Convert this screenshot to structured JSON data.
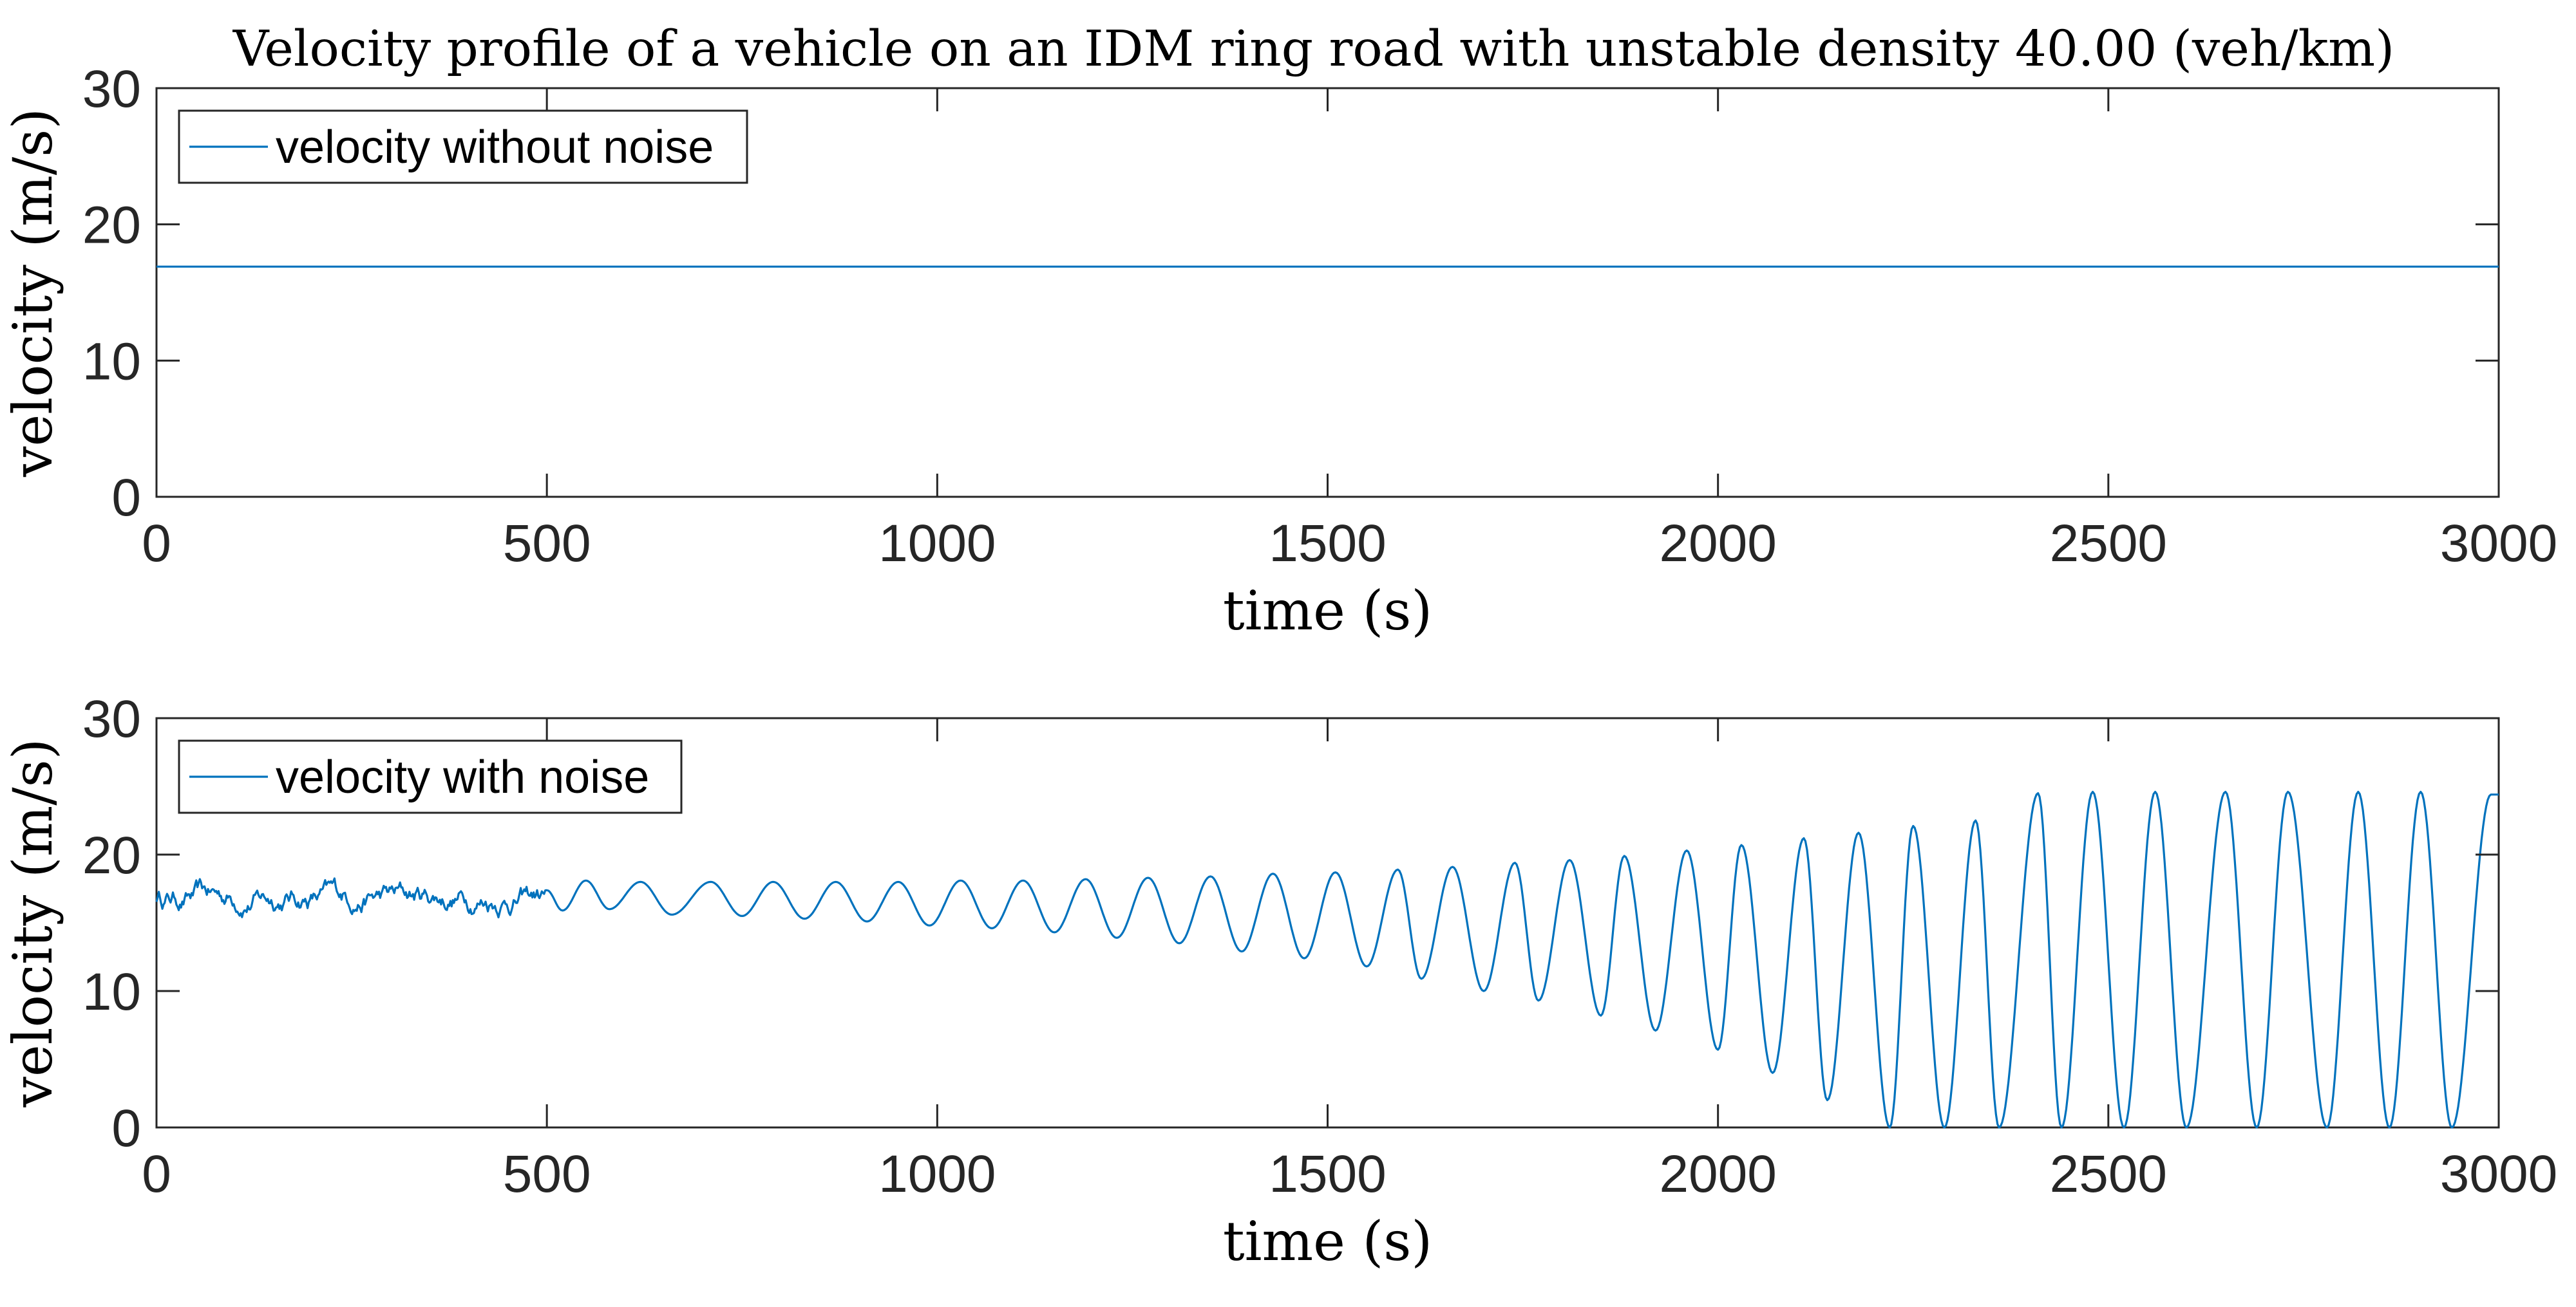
{
  "title": "Velocity profile of a vehicle on an IDM ring road with unstable density 40.00 (veh/km)",
  "colors": {
    "series": "#0072BD",
    "axes": "#262626"
  },
  "chart_data": [
    {
      "type": "line",
      "xlabel": "time (s)",
      "ylabel": "velocity (m/s)",
      "xlim": [
        0,
        3000
      ],
      "ylim": [
        0,
        30
      ],
      "xticks": [
        "0",
        "500",
        "1000",
        "1500",
        "2000",
        "2500",
        "3000"
      ],
      "yticks": [
        "0",
        "10",
        "20",
        "30"
      ],
      "grid": false,
      "legend_position": "top-left",
      "series": [
        {
          "name": "velocity without noise",
          "x": [
            0,
            3000
          ],
          "y": [
            16.9,
            16.9
          ]
        }
      ]
    },
    {
      "type": "line",
      "xlabel": "time (s)",
      "ylabel": "velocity (m/s)",
      "xlim": [
        0,
        3000
      ],
      "ylim": [
        0,
        30
      ],
      "xticks": [
        "0",
        "500",
        "1000",
        "1500",
        "2000",
        "2500",
        "3000"
      ],
      "yticks": [
        "0",
        "10",
        "20",
        "30"
      ],
      "grid": false,
      "legend_position": "top-left",
      "series": [
        {
          "name": "velocity with noise",
          "noisy_segment": {
            "x_range": [
              0,
              500
            ],
            "mean": 16.9,
            "y_range": [
              14.6,
              19.4
            ]
          },
          "oscillation_troughs": {
            "x": [
              520,
              580,
              660,
              750,
              830,
              910,
              990,
              1070,
              1150,
              1230,
              1310,
              1390,
              1470,
              1550,
              1620,
              1700,
              1770,
              1850,
              1920,
              2000,
              2070,
              2140,
              2220,
              2290,
              2360,
              2440,
              2520,
              2600,
              2690,
              2780,
              2860,
              2940
            ],
            "y": [
              15.9,
              16.0,
              15.6,
              15.5,
              15.3,
              15.1,
              14.8,
              14.6,
              14.3,
              13.9,
              13.5,
              12.9,
              12.4,
              11.8,
              10.9,
              10.0,
              9.3,
              8.2,
              7.1,
              5.7,
              4.0,
              2.0,
              0.0,
              0.0,
              0.0,
              0.0,
              0.0,
              0.0,
              0.0,
              0.0,
              0.0,
              0.0
            ]
          },
          "oscillation_peaks": {
            "x": [
              550,
              620,
              710,
              790,
              870,
              950,
              1030,
              1110,
              1190,
              1270,
              1350,
              1430,
              1510,
              1590,
              1660,
              1740,
              1810,
              1880,
              1960,
              2030,
              2110,
              2180,
              2250,
              2330,
              2410,
              2480,
              2560,
              2650,
              2730,
              2820,
              2900,
              2990
            ],
            "y": [
              18.1,
              18.0,
              18.0,
              18.0,
              18.0,
              18.0,
              18.1,
              18.1,
              18.2,
              18.3,
              18.4,
              18.6,
              18.7,
              18.9,
              19.1,
              19.4,
              19.6,
              19.9,
              20.3,
              20.7,
              21.2,
              21.6,
              22.1,
              22.5,
              24.5,
              24.6,
              24.6,
              24.6,
              24.6,
              24.6,
              24.6,
              24.4
            ]
          }
        }
      ]
    }
  ]
}
